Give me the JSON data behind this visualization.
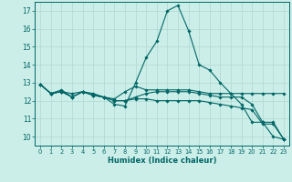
{
  "xlabel": "Humidex (Indice chaleur)",
  "ylabel": "",
  "bg_color": "#cceee8",
  "grid_color": "#b0d8d0",
  "line_color": "#006666",
  "xlim": [
    -0.5,
    23.5
  ],
  "ylim": [
    9.5,
    17.5
  ],
  "yticks": [
    10,
    11,
    12,
    13,
    14,
    15,
    16,
    17
  ],
  "xticks": [
    0,
    1,
    2,
    3,
    4,
    5,
    6,
    7,
    8,
    9,
    10,
    11,
    12,
    13,
    14,
    15,
    16,
    17,
    18,
    19,
    20,
    21,
    22,
    23
  ],
  "series": [
    [
      12.9,
      12.4,
      12.6,
      12.2,
      12.5,
      12.4,
      12.2,
      11.8,
      11.7,
      13.0,
      14.4,
      15.3,
      17.0,
      17.3,
      15.9,
      14.0,
      13.7,
      13.0,
      12.4,
      11.8,
      10.8,
      10.8,
      10.0,
      9.85
    ],
    [
      12.9,
      12.4,
      12.5,
      12.2,
      12.5,
      12.3,
      12.2,
      12.1,
      12.5,
      12.8,
      12.6,
      12.6,
      12.6,
      12.6,
      12.6,
      12.5,
      12.4,
      12.4,
      12.4,
      12.4,
      12.4,
      12.4,
      12.4,
      12.4
    ],
    [
      12.9,
      12.4,
      12.5,
      12.2,
      12.5,
      12.3,
      12.2,
      12.0,
      12.0,
      12.1,
      12.1,
      12.0,
      12.0,
      12.0,
      12.0,
      12.0,
      11.9,
      11.8,
      11.7,
      11.6,
      11.5,
      10.7,
      10.7,
      9.85
    ],
    [
      12.9,
      12.4,
      12.5,
      12.4,
      12.5,
      12.3,
      12.2,
      12.0,
      12.0,
      12.2,
      12.4,
      12.5,
      12.5,
      12.5,
      12.5,
      12.4,
      12.3,
      12.2,
      12.2,
      12.2,
      11.8,
      10.8,
      10.8,
      9.85
    ]
  ]
}
